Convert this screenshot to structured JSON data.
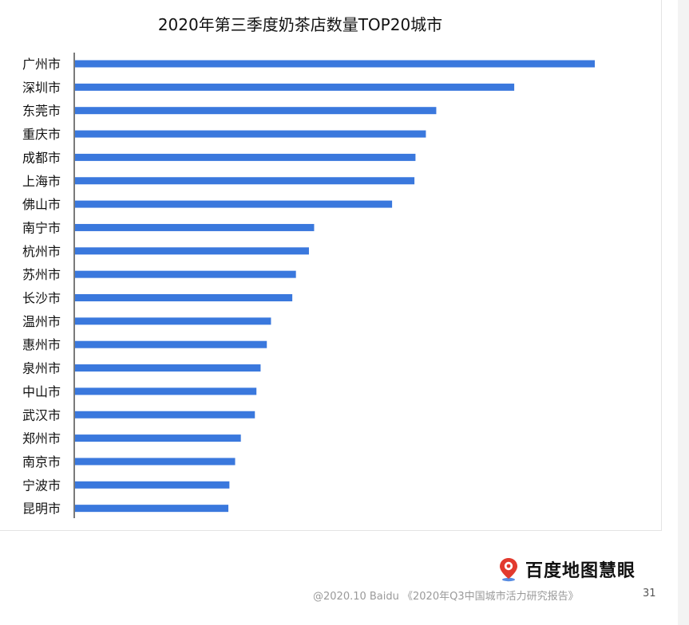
{
  "chart_data": {
    "type": "bar",
    "orientation": "horizontal",
    "title": "2020年第三季度奶茶店数量TOP20城市",
    "categories": [
      "广州市",
      "深圳市",
      "东莞市",
      "重庆市",
      "成都市",
      "上海市",
      "佛山市",
      "南宁市",
      "杭州市",
      "苏州市",
      "长沙市",
      "温州市",
      "惠州市",
      "泉州市",
      "中山市",
      "武汉市",
      "郑州市",
      "南京市",
      "宁波市",
      "昆明市"
    ],
    "values": [
      100,
      84.5,
      69.5,
      67.5,
      65.5,
      65.3,
      61,
      46,
      45,
      42.5,
      41.8,
      37.7,
      36.9,
      35.7,
      34.9,
      34.6,
      31.9,
      30.8,
      29.7,
      29.5
    ],
    "xlim": [
      0,
      100
    ],
    "grid": false,
    "legend": "none",
    "bar_color": "#3a78dd"
  },
  "branding": {
    "logo_text": "百度地图慧眼",
    "logo_icon": "map-pin-icon"
  },
  "footer": {
    "source": "@2020.10 Baidu 《2020年Q3中国城市活力研究报告》",
    "page_number": "31"
  }
}
